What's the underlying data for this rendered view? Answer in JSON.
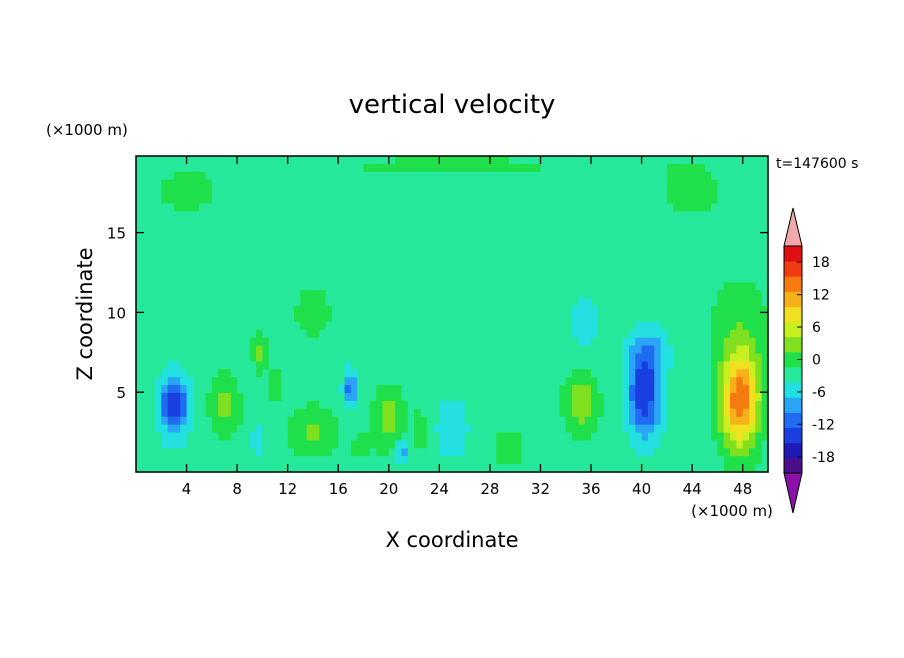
{
  "chart_data": {
    "type": "heatmap",
    "title": "vertical velocity",
    "xlabel": "X coordinate",
    "ylabel": "Z coordinate",
    "x_unit": "(×1000 m)",
    "y_unit": "(×1000 m)",
    "time_label": "t=147600 s",
    "xlim": [
      0,
      50
    ],
    "ylim": [
      0,
      19.8
    ],
    "x_ticks": [
      4,
      8,
      12,
      16,
      20,
      24,
      28,
      32,
      36,
      40,
      44,
      48
    ],
    "y_ticks": [
      5,
      10,
      15
    ],
    "colorbar": {
      "levels": [
        -21,
        -18,
        -15,
        -12,
        -9,
        -6,
        -3,
        0,
        3,
        6,
        9,
        12,
        15,
        18,
        21
      ],
      "tick_labels": [
        18,
        12,
        6,
        0,
        -6,
        -12,
        -18
      ],
      "colors": [
        "#4b0f8a",
        "#1f19b8",
        "#1a3fe0",
        "#1f6cf2",
        "#2aa5f5",
        "#22e0e0",
        "#25e89a",
        "#1fe04a",
        "#7fe020",
        "#c8f020",
        "#f0e020",
        "#f5b01a",
        "#f57a10",
        "#f03c10",
        "#e01010"
      ],
      "under_color": "#8b10a8",
      "over_color": "#f0a8a8"
    },
    "features": [
      {
        "x": 3,
        "z": 4.2,
        "value": -13,
        "sx": 1.1,
        "sz": 1.9
      },
      {
        "x": 7,
        "z": 4.2,
        "value": 6,
        "sx": 1.2,
        "sz": 1.8
      },
      {
        "x": 9.8,
        "z": 7.5,
        "value": 5,
        "sx": 0.6,
        "sz": 1.2
      },
      {
        "x": 11,
        "z": 5.5,
        "value": 4,
        "sx": 0.6,
        "sz": 1.0
      },
      {
        "x": 9.6,
        "z": 2.0,
        "value": -4,
        "sx": 0.6,
        "sz": 0.8
      },
      {
        "x": 14,
        "z": 2.5,
        "value": 5,
        "sx": 1.8,
        "sz": 1.6
      },
      {
        "x": 16.9,
        "z": 5.2,
        "value": -9,
        "sx": 0.5,
        "sz": 1.2
      },
      {
        "x": 17.8,
        "z": 1.5,
        "value": 3,
        "sx": 0.8,
        "sz": 0.8
      },
      {
        "x": 20,
        "z": 3.3,
        "value": 6,
        "sx": 1.2,
        "sz": 2.0
      },
      {
        "x": 21,
        "z": 1.2,
        "value": -7,
        "sx": 0.6,
        "sz": 0.8
      },
      {
        "x": 22.5,
        "z": 2.5,
        "value": 5,
        "sx": 0.5,
        "sz": 1.2
      },
      {
        "x": 25,
        "z": 2.7,
        "value": -4,
        "sx": 1.3,
        "sz": 2.0
      },
      {
        "x": 29.5,
        "z": 1.5,
        "value": 4,
        "sx": 1.2,
        "sz": 1.0
      },
      {
        "x": 35.2,
        "z": 4.3,
        "value": 7,
        "sx": 1.3,
        "sz": 1.8
      },
      {
        "x": 35.5,
        "z": 9.5,
        "value": -4,
        "sx": 1.0,
        "sz": 1.5
      },
      {
        "x": 40.2,
        "z": 4.8,
        "value": -13,
        "sx": 1.3,
        "sz": 2.6
      },
      {
        "x": 40.5,
        "z": 7.5,
        "value": -5,
        "sx": 1.5,
        "sz": 1.6
      },
      {
        "x": 47.8,
        "z": 4.5,
        "value": 19,
        "sx": 1.5,
        "sz": 3.0
      },
      {
        "x": 47.8,
        "z": 9.5,
        "value": 3,
        "sx": 2.5,
        "sz": 3.0
      },
      {
        "x": 44,
        "z": 17.5,
        "value": 2,
        "sx": 4.0,
        "sz": 2.5
      },
      {
        "x": 4,
        "z": 17.5,
        "value": 2,
        "sx": 4.0,
        "sz": 2.0
      },
      {
        "x": 25,
        "z": 19.2,
        "value": 2,
        "sx": 14.0,
        "sz": 0.8
      },
      {
        "x": 14,
        "z": 10,
        "value": 2,
        "sx": 2.5,
        "sz": 3.0
      }
    ]
  }
}
